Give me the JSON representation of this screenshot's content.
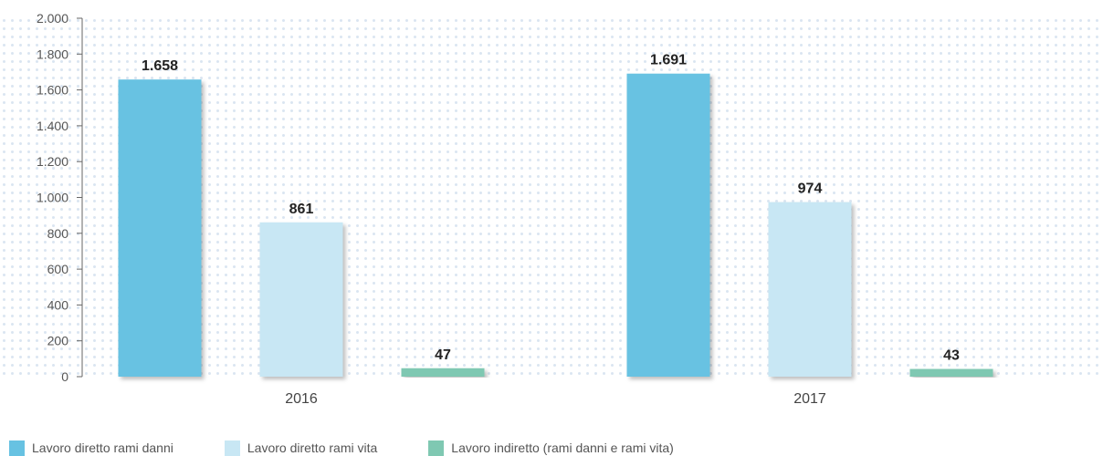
{
  "chart_data": {
    "type": "bar",
    "categories": [
      "2016",
      "2017"
    ],
    "series": [
      {
        "name": "Lavoro diretto rami danni",
        "values": [
          1658,
          1691
        ],
        "labels": [
          "1.658",
          "1.691"
        ],
        "color": "#67c2e2"
      },
      {
        "name": "Lavoro diretto rami vita",
        "values": [
          861,
          974
        ],
        "labels": [
          "861",
          "974"
        ],
        "color": "#c8e7f4"
      },
      {
        "name": "Lavoro indiretto (rami danni e rami vita)",
        "values": [
          47,
          43
        ],
        "labels": [
          "47",
          "43"
        ],
        "color": "#7fc8b2"
      }
    ],
    "ylim": [
      0,
      2000
    ],
    "yticks": [
      0,
      200,
      400,
      600,
      800,
      1000,
      1200,
      1400,
      1600,
      1800,
      2000
    ],
    "ytick_labels": [
      "0",
      "200",
      "400",
      "600",
      "800",
      "1.000",
      "1.200",
      "1.400",
      "1.600",
      "1.800",
      "2.000"
    ],
    "grid": false,
    "legend_position": "bottom-left",
    "title": "",
    "xlabel": "",
    "ylabel": ""
  }
}
